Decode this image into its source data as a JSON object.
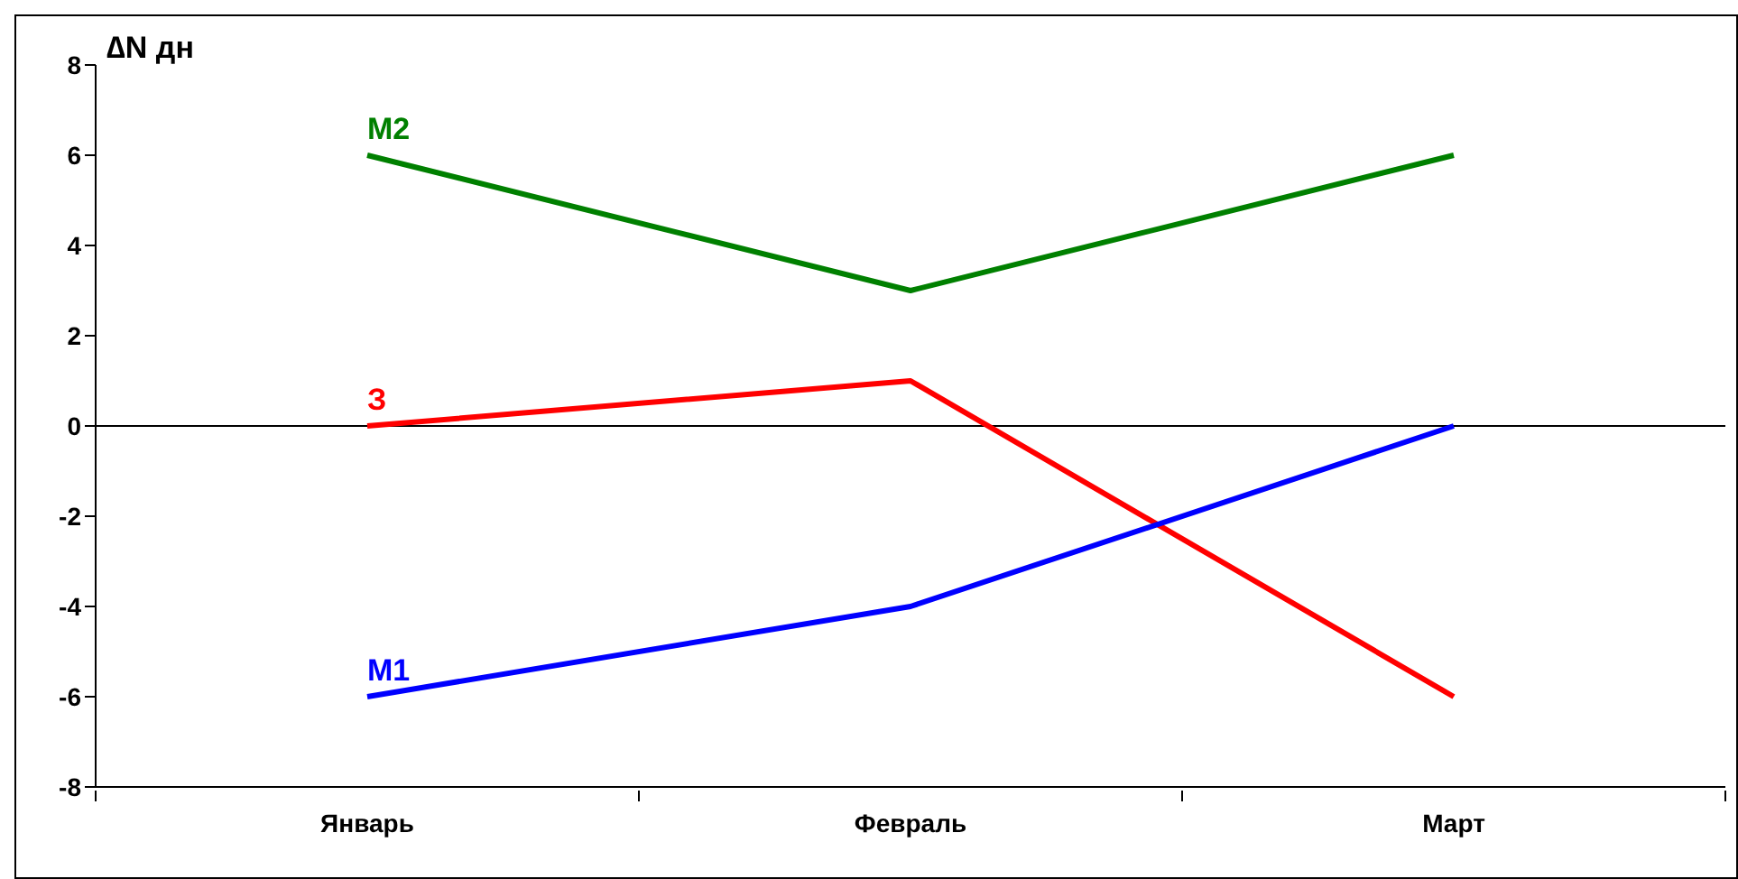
{
  "chart_data": {
    "type": "line",
    "ylabel": "∆N дн",
    "categories": [
      "Январь",
      "Февраль",
      "Март"
    ],
    "series": [
      {
        "name": "М2",
        "color": "#008000",
        "values": [
          6,
          3,
          6
        ]
      },
      {
        "name": "З",
        "color": "#ff0000",
        "values": [
          0,
          1,
          -6
        ]
      },
      {
        "name": "М1",
        "color": "#0000ff",
        "values": [
          -6,
          -4,
          0
        ]
      }
    ],
    "ylim": [
      -8,
      8
    ],
    "yticks": [
      -8,
      -6,
      -4,
      -2,
      0,
      2,
      4,
      6,
      8
    ],
    "grid": false,
    "legend": false,
    "marker": "none",
    "line_style": "solid",
    "ref_lines": [
      {
        "axis": "y",
        "value": 0,
        "label": null,
        "color": "#000000"
      }
    ]
  }
}
